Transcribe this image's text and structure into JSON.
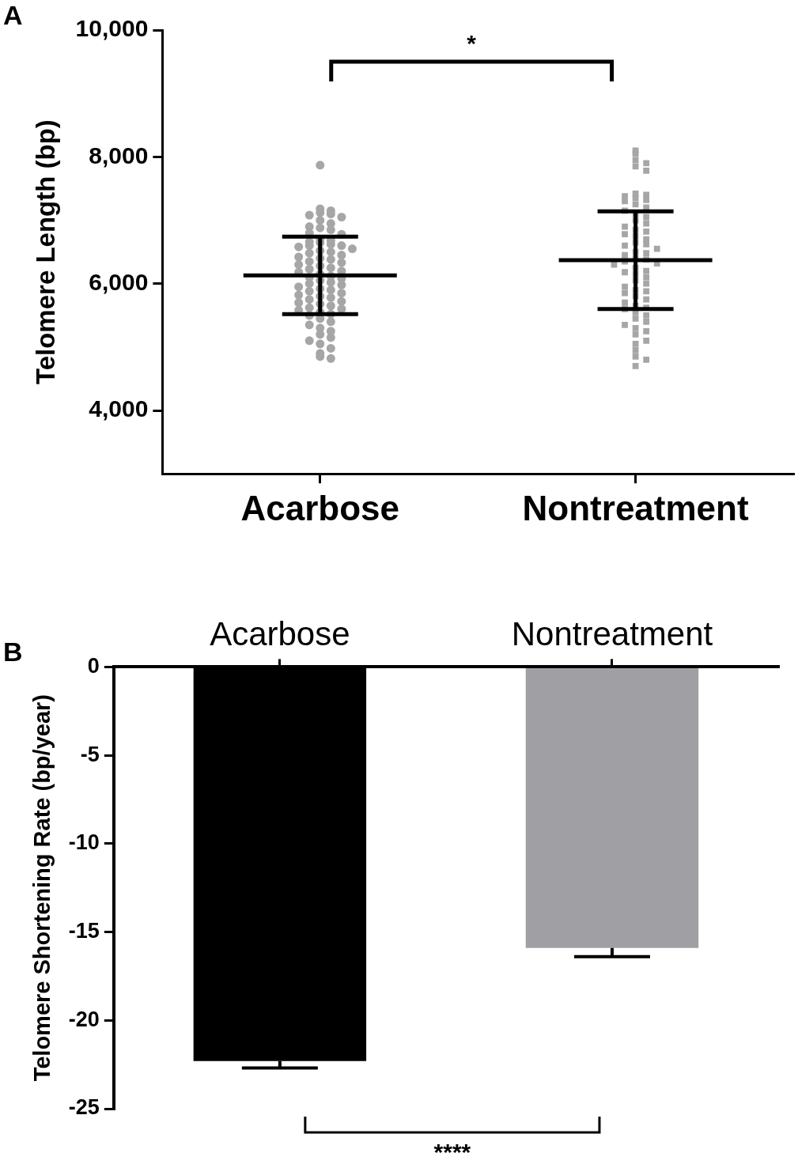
{
  "chart_data": [
    {
      "title": "A",
      "type": "scatter",
      "y_label": "Telomere Length (bp)",
      "ylim": [
        3000,
        10000
      ],
      "yticks": [
        4000,
        6000,
        8000,
        10000
      ],
      "grid": false,
      "series": [
        {
          "name": "Acarbose",
          "color": "#a6a6a6",
          "marker": "circle",
          "mean": 6130,
          "sd": 610,
          "values": [
            7870,
            7180,
            7150,
            7120,
            7100,
            7080,
            7050,
            7000,
            6950,
            6900,
            6880,
            6850,
            6800,
            6780,
            6700,
            6680,
            6660,
            6650,
            6620,
            6600,
            6600,
            6580,
            6550,
            6520,
            6500,
            6480,
            6450,
            6420,
            6400,
            6380,
            6350,
            6330,
            6300,
            6280,
            6250,
            6230,
            6200,
            6180,
            6150,
            6120,
            6100,
            6080,
            6050,
            6020,
            6000,
            5980,
            5950,
            5920,
            5900,
            5880,
            5850,
            5820,
            5800,
            5780,
            5750,
            5720,
            5700,
            5680,
            5650,
            5620,
            5600,
            5580,
            5550,
            5520,
            5500,
            5450,
            5400,
            5350,
            5300,
            5250,
            5200,
            5150,
            5100,
            5050,
            4980,
            4900,
            4850,
            4820
          ]
        },
        {
          "name": "Nontreatment",
          "color": "#a6a6a6",
          "marker": "square",
          "mean": 6370,
          "sd": 770,
          "values": [
            8100,
            8050,
            7950,
            7900,
            7850,
            7780,
            7420,
            7400,
            7380,
            7350,
            7320,
            7300,
            7250,
            7200,
            7150,
            7100,
            7050,
            7000,
            6950,
            6900,
            6850,
            6820,
            6780,
            6750,
            6700,
            6650,
            6620,
            6600,
            6550,
            6500,
            6480,
            6450,
            6400,
            6380,
            6350,
            6320,
            6300,
            6250,
            6200,
            6180,
            6150,
            6100,
            6050,
            6000,
            5950,
            5900,
            5880,
            5850,
            5800,
            5750,
            5700,
            5650,
            5620,
            5600,
            5550,
            5500,
            5450,
            5400,
            5350,
            5300,
            5250,
            5200,
            5100,
            5050,
            4950,
            4850,
            4800,
            4700
          ]
        }
      ],
      "annotations": [
        "*"
      ]
    },
    {
      "title": "B",
      "type": "bar",
      "y_label": "Telomere Shortening Rate (bp/year)",
      "categories": [
        "Acarbose",
        "Nontreatment"
      ],
      "values": [
        -22.3,
        -15.9
      ],
      "errors": [
        0.4,
        0.5
      ],
      "colors": [
        "#000000",
        "#a0a0a4"
      ],
      "ylim": [
        -25,
        0
      ],
      "yticks": [
        -25,
        -20,
        -15,
        -10,
        -5,
        0
      ],
      "grid": false,
      "annotations": [
        "****"
      ]
    }
  ]
}
